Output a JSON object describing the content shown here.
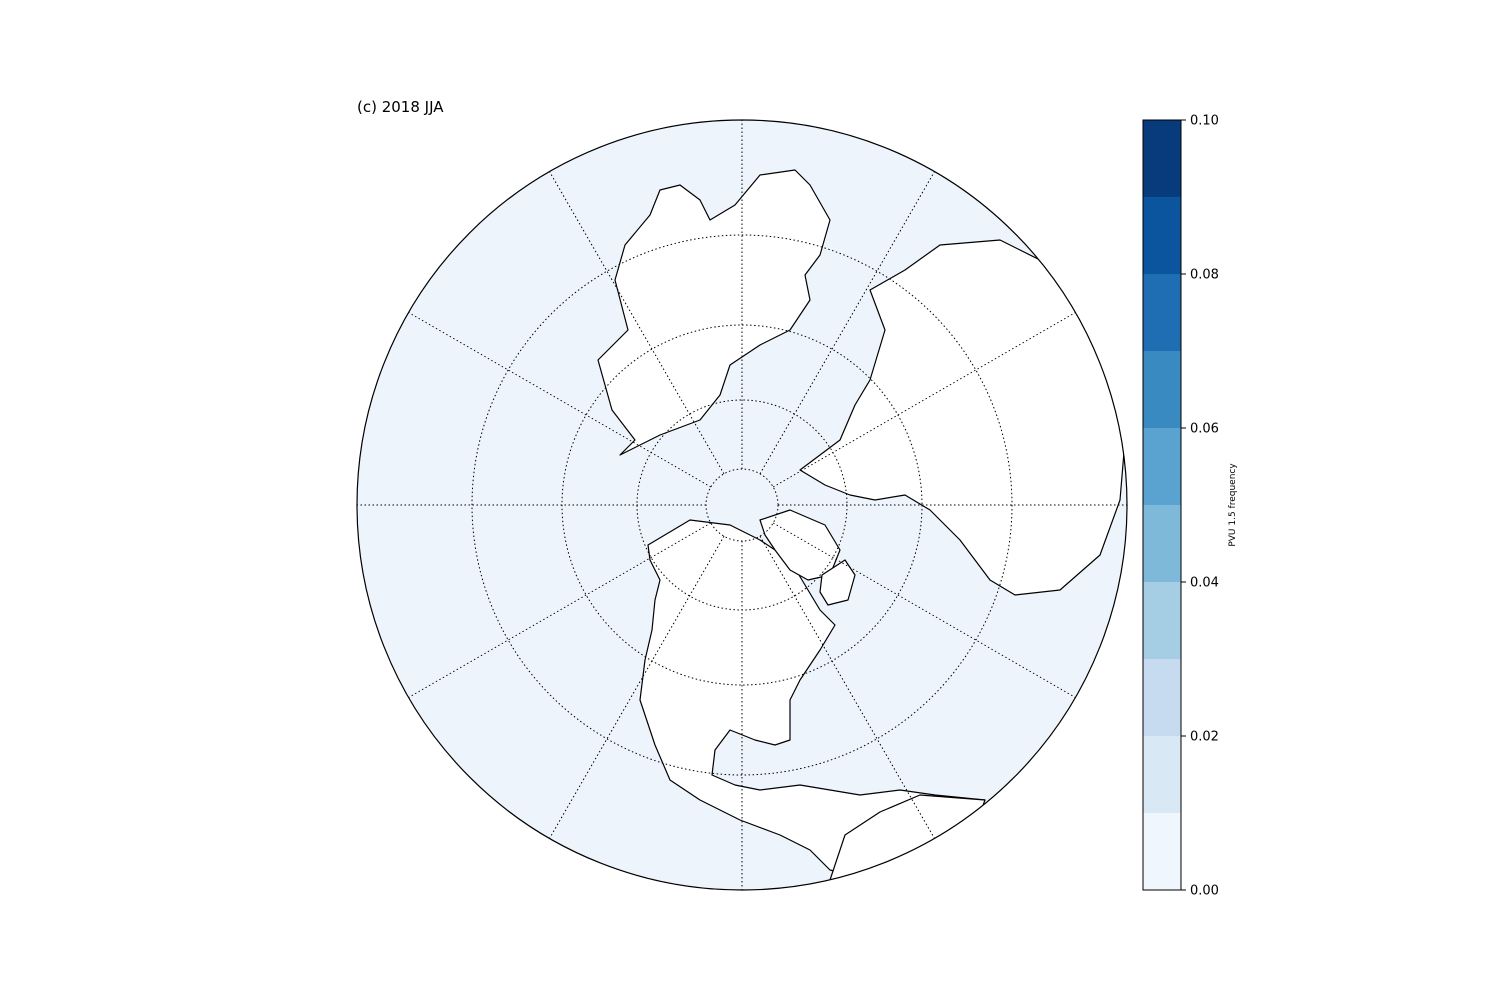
{
  "title": "(c) 2018 JJA",
  "colors": {
    "ocean_fill": "#edf4fc",
    "land_fill": "#ffffff",
    "outline": "#000000"
  },
  "colorbar": {
    "label": "PVU 1.5 frequency",
    "min": 0.0,
    "max": 0.1,
    "tick_values": [
      0.0,
      0.02,
      0.04,
      0.06,
      0.08,
      0.1
    ],
    "tick_labels": [
      "0.00",
      "0.02",
      "0.04",
      "0.06",
      "0.08",
      "0.10"
    ],
    "levels": [
      {
        "from": 0.0,
        "to": 0.01,
        "color": "#f0f6fd"
      },
      {
        "from": 0.01,
        "to": 0.02,
        "color": "#d9e8f5"
      },
      {
        "from": 0.02,
        "to": 0.03,
        "color": "#c6dbef"
      },
      {
        "from": 0.03,
        "to": 0.04,
        "color": "#a5cde3"
      },
      {
        "from": 0.04,
        "to": 0.05,
        "color": "#7fb9da"
      },
      {
        "from": 0.05,
        "to": 0.06,
        "color": "#5aa2cf"
      },
      {
        "from": 0.06,
        "to": 0.07,
        "color": "#3a8ac2"
      },
      {
        "from": 0.07,
        "to": 0.08,
        "color": "#1f6eb3"
      },
      {
        "from": 0.08,
        "to": 0.09,
        "color": "#0b559f"
      },
      {
        "from": 0.09,
        "to": 0.1,
        "color": "#083b7c"
      }
    ]
  },
  "map": {
    "projection": "north-polar-stereographic",
    "latitude_circles": [
      80,
      60,
      40,
      20
    ],
    "meridian_count": 12
  }
}
